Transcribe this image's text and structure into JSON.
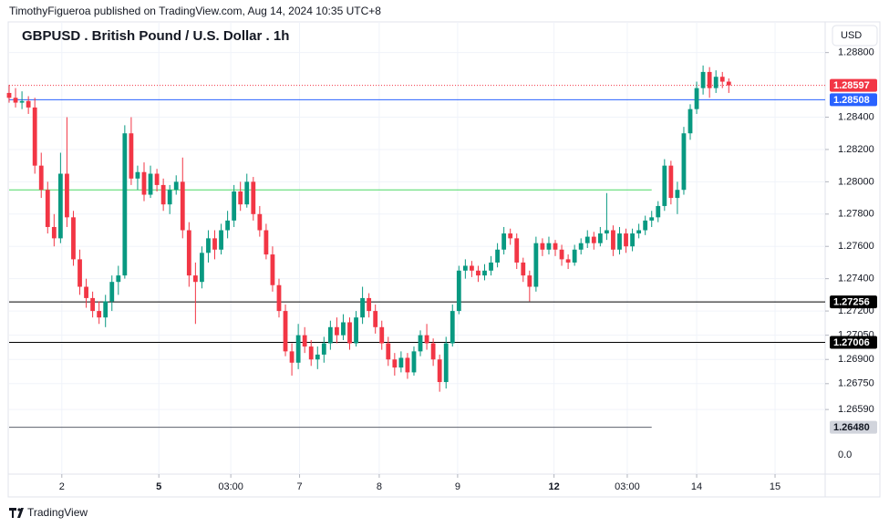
{
  "header": "TimothyFigueroa published on TradingView.com, Aug 14, 2024 10:35 UTC+8",
  "footer": "TradingView",
  "chart_data": {
    "type": "candlestick",
    "title": "GBPUSD . British Pound / U.S. Dollar . 1h",
    "currency": "USD",
    "up_color": "#089981",
    "down_color": "#f23645",
    "grid": true,
    "xlim": [
      0,
      127
    ],
    "ylim": [
      1.2619,
      1.2899
    ],
    "xticks": [
      {
        "value": 8.2,
        "label": "2"
      },
      {
        "value": 23.3,
        "label": "5",
        "bold": true
      },
      {
        "value": 34.5,
        "label": "03:00"
      },
      {
        "value": 45.2,
        "label": "7"
      },
      {
        "value": 57.6,
        "label": "8"
      },
      {
        "value": 69.8,
        "label": "9"
      },
      {
        "value": 84.8,
        "label": "12",
        "bold": true
      },
      {
        "value": 96.2,
        "label": "03:00"
      },
      {
        "value": 107,
        "label": "14"
      },
      {
        "value": 119.2,
        "label": "15"
      }
    ],
    "yticks": [
      {
        "value": 1.288,
        "label": "1.28800"
      },
      {
        "value": 1.284,
        "label": "1.28400"
      },
      {
        "value": 1.282,
        "label": "1.28200"
      },
      {
        "value": 1.28,
        "label": "1.28000"
      },
      {
        "value": 1.278,
        "label": "1.27800"
      },
      {
        "value": 1.276,
        "label": "1.27600"
      },
      {
        "value": 1.274,
        "label": "1.27400"
      },
      {
        "value": 1.272,
        "label": "1.27200"
      },
      {
        "value": 1.2705,
        "label": "1.27050"
      },
      {
        "value": 1.269,
        "label": "1.26900"
      },
      {
        "value": 1.2675,
        "label": "1.26750"
      },
      {
        "value": 1.2659,
        "label": "1.26590"
      }
    ],
    "bottom_label": "0.0",
    "price_lines": [
      {
        "value": 1.28597,
        "color": "#f23645",
        "label_color": "#ffffff",
        "dotted": true
      },
      {
        "value": 1.28508,
        "color": "#2962ff",
        "label_color": "#ffffff"
      },
      {
        "value": 1.2795,
        "color": "#4cd964",
        "x_end": 100
      },
      {
        "value": 1.27256,
        "color": "#000000",
        "label_color": "#ffffff"
      },
      {
        "value": 1.27006,
        "color": "#000000",
        "label_color": "#ffffff"
      },
      {
        "value": 1.2648,
        "label": "1.26480",
        "color": "#5d606b",
        "label_bg": "#d1d4dc",
        "label_color": "#131722",
        "x_end": 100
      }
    ],
    "ohlc": [
      [
        1.2855,
        1.286,
        1.2849,
        1.2852
      ],
      [
        1.2852,
        1.2858,
        1.2846,
        1.2849
      ],
      [
        1.2849,
        1.2856,
        1.2845,
        1.285
      ],
      [
        1.285,
        1.2853,
        1.2842,
        1.2846
      ],
      [
        1.2846,
        1.2852,
        1.2805,
        1.281
      ],
      [
        1.281,
        1.2818,
        1.279,
        1.2795
      ],
      [
        1.2795,
        1.28,
        1.2768,
        1.2772
      ],
      [
        1.2772,
        1.278,
        1.276,
        1.2765
      ],
      [
        1.2765,
        1.2818,
        1.2762,
        1.2805
      ],
      [
        1.2805,
        1.284,
        1.2772,
        1.2778
      ],
      [
        1.2778,
        1.2782,
        1.2748,
        1.2752
      ],
      [
        1.2752,
        1.2758,
        1.273,
        1.2735
      ],
      [
        1.2735,
        1.274,
        1.2722,
        1.2728
      ],
      [
        1.2728,
        1.2732,
        1.2716,
        1.272
      ],
      [
        1.272,
        1.2726,
        1.2712,
        1.2716
      ],
      [
        1.2716,
        1.273,
        1.271,
        1.2726
      ],
      [
        1.2726,
        1.2742,
        1.272,
        1.2738
      ],
      [
        1.2738,
        1.2748,
        1.273,
        1.2742
      ],
      [
        1.2742,
        1.2835,
        1.274,
        1.283
      ],
      [
        1.283,
        1.284,
        1.2798,
        1.2802
      ],
      [
        1.2802,
        1.281,
        1.2795,
        1.2806
      ],
      [
        1.2806,
        1.2812,
        1.2788,
        1.2792
      ],
      [
        1.2792,
        1.281,
        1.279,
        1.2805
      ],
      [
        1.2805,
        1.2808,
        1.2794,
        1.2798
      ],
      [
        1.2798,
        1.2802,
        1.2782,
        1.2786
      ],
      [
        1.2786,
        1.2798,
        1.278,
        1.2795
      ],
      [
        1.2795,
        1.2804,
        1.2792,
        1.28
      ],
      [
        1.28,
        1.2815,
        1.2765,
        1.277
      ],
      [
        1.277,
        1.2775,
        1.2735,
        1.2742
      ],
      [
        1.2742,
        1.275,
        1.2712,
        1.2738
      ],
      [
        1.2738,
        1.276,
        1.2734,
        1.2756
      ],
      [
        1.2756,
        1.277,
        1.275,
        1.2765
      ],
      [
        1.2765,
        1.277,
        1.2752,
        1.2758
      ],
      [
        1.2758,
        1.2774,
        1.2755,
        1.277
      ],
      [
        1.277,
        1.2782,
        1.2765,
        1.2776
      ],
      [
        1.2776,
        1.2798,
        1.2772,
        1.2794
      ],
      [
        1.2794,
        1.28,
        1.2782,
        1.2786
      ],
      [
        1.2786,
        1.2805,
        1.2784,
        1.28
      ],
      [
        1.28,
        1.2803,
        1.2776,
        1.278
      ],
      [
        1.278,
        1.2785,
        1.2766,
        1.277
      ],
      [
        1.277,
        1.2774,
        1.2752,
        1.2755
      ],
      [
        1.2755,
        1.276,
        1.2732,
        1.2736
      ],
      [
        1.2736,
        1.274,
        1.2716,
        1.272
      ],
      [
        1.272,
        1.2724,
        1.2692,
        1.2695
      ],
      [
        1.2695,
        1.27,
        1.268,
        1.2688
      ],
      [
        1.2688,
        1.2712,
        1.2684,
        1.2705
      ],
      [
        1.2705,
        1.271,
        1.2694,
        1.2698
      ],
      [
        1.2698,
        1.2702,
        1.2686,
        1.269
      ],
      [
        1.269,
        1.2698,
        1.2684,
        1.2693
      ],
      [
        1.2693,
        1.2704,
        1.2688,
        1.27
      ],
      [
        1.27,
        1.2714,
        1.2696,
        1.271
      ],
      [
        1.271,
        1.2716,
        1.27,
        1.2705
      ],
      [
        1.2705,
        1.2718,
        1.2702,
        1.2713
      ],
      [
        1.2713,
        1.2716,
        1.2696,
        1.27
      ],
      [
        1.27,
        1.272,
        1.2698,
        1.2716
      ],
      [
        1.2716,
        1.2735,
        1.2712,
        1.2728
      ],
      [
        1.2728,
        1.2731,
        1.2716,
        1.272
      ],
      [
        1.272,
        1.2724,
        1.2706,
        1.271
      ],
      [
        1.271,
        1.2714,
        1.2696,
        1.27
      ],
      [
        1.27,
        1.2704,
        1.2686,
        1.269
      ],
      [
        1.269,
        1.2694,
        1.268,
        1.2685
      ],
      [
        1.2685,
        1.2695,
        1.2682,
        1.2691
      ],
      [
        1.2691,
        1.2694,
        1.2678,
        1.2682
      ],
      [
        1.2682,
        1.2698,
        1.268,
        1.2695
      ],
      [
        1.2695,
        1.2708,
        1.2692,
        1.2705
      ],
      [
        1.2705,
        1.2712,
        1.2696,
        1.27
      ],
      [
        1.27,
        1.2703,
        1.2686,
        1.269
      ],
      [
        1.269,
        1.2693,
        1.267,
        1.2676
      ],
      [
        1.2676,
        1.2704,
        1.2672,
        1.27
      ],
      [
        1.27,
        1.2724,
        1.2698,
        1.272
      ],
      [
        1.272,
        1.2748,
        1.2718,
        1.2745
      ],
      [
        1.2745,
        1.2752,
        1.274,
        1.2748
      ],
      [
        1.2748,
        1.2751,
        1.2741,
        1.2745
      ],
      [
        1.2745,
        1.2748,
        1.2738,
        1.2742
      ],
      [
        1.2742,
        1.2749,
        1.2739,
        1.2745
      ],
      [
        1.2745,
        1.2754,
        1.2742,
        1.275
      ],
      [
        1.275,
        1.2762,
        1.2747,
        1.2758
      ],
      [
        1.2758,
        1.2772,
        1.2755,
        1.2768
      ],
      [
        1.2768,
        1.2771,
        1.2761,
        1.2765
      ],
      [
        1.2765,
        1.2768,
        1.2746,
        1.275
      ],
      [
        1.275,
        1.2753,
        1.2738,
        1.2742
      ],
      [
        1.2742,
        1.2745,
        1.2726,
        1.2735
      ],
      [
        1.2735,
        1.2766,
        1.2732,
        1.2762
      ],
      [
        1.2762,
        1.2765,
        1.2754,
        1.2758
      ],
      [
        1.2758,
        1.2766,
        1.2755,
        1.2762
      ],
      [
        1.2762,
        1.2764,
        1.2754,
        1.2758
      ],
      [
        1.2758,
        1.2761,
        1.2748,
        1.2752
      ],
      [
        1.2752,
        1.2755,
        1.2746,
        1.275
      ],
      [
        1.275,
        1.2761,
        1.2748,
        1.2758
      ],
      [
        1.2758,
        1.2765,
        1.2755,
        1.2762
      ],
      [
        1.2762,
        1.277,
        1.2759,
        1.2766
      ],
      [
        1.2766,
        1.2769,
        1.2758,
        1.2762
      ],
      [
        1.2762,
        1.2772,
        1.276,
        1.2768
      ],
      [
        1.2768,
        1.2793,
        1.2764,
        1.277
      ],
      [
        1.277,
        1.2773,
        1.2754,
        1.2758
      ],
      [
        1.2758,
        1.2772,
        1.2755,
        1.2768
      ],
      [
        1.2768,
        1.2771,
        1.2756,
        1.276
      ],
      [
        1.276,
        1.2771,
        1.2757,
        1.2768
      ],
      [
        1.2768,
        1.2774,
        1.2765,
        1.277
      ],
      [
        1.277,
        1.2779,
        1.2767,
        1.2776
      ],
      [
        1.2776,
        1.2782,
        1.2772,
        1.2778
      ],
      [
        1.2778,
        1.2788,
        1.2775,
        1.2785
      ],
      [
        1.2785,
        1.2814,
        1.2782,
        1.281
      ],
      [
        1.281,
        1.2813,
        1.2786,
        1.279
      ],
      [
        1.279,
        1.28,
        1.278,
        1.2795
      ],
      [
        1.2795,
        1.2834,
        1.2792,
        1.283
      ],
      [
        1.283,
        1.2848,
        1.2826,
        1.2845
      ],
      [
        1.2845,
        1.2862,
        1.2842,
        1.2858
      ],
      [
        1.2858,
        1.2872,
        1.2854,
        1.2868
      ],
      [
        1.2868,
        1.2871,
        1.2852,
        1.2858
      ],
      [
        1.2858,
        1.2869,
        1.2855,
        1.2865
      ],
      [
        1.2865,
        1.2868,
        1.2858,
        1.2862
      ],
      [
        1.2862,
        1.2864,
        1.2855,
        1.28597
      ]
    ]
  }
}
